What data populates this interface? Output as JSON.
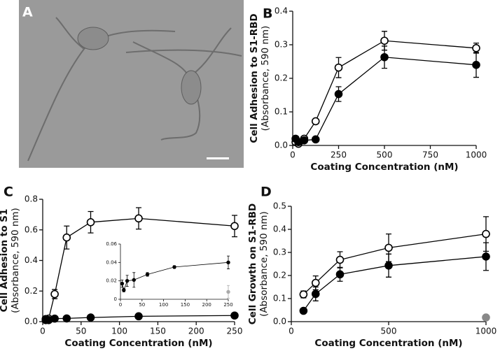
{
  "chart_data": [
    {
      "type": "image",
      "panel": "A"
    },
    {
      "type": "line",
      "panel": "B",
      "xlabel": "Coating Concentration (nM)",
      "ylabel": [
        "Cell Adhesion to S1-RBD",
        "(Absorbance, 590 nm)"
      ],
      "xlim": [
        0,
        1000
      ],
      "xticks": [
        0,
        250,
        500,
        750,
        1000
      ],
      "ylim": [
        0,
        0.4
      ],
      "yticks": [
        {
          "value": 0,
          "label": "0.0"
        },
        0.1,
        0.2,
        0.3,
        0.4
      ],
      "series": [
        {
          "marker": "open",
          "color": "#000000",
          "x": [
            15.6,
            31.25,
            62.5,
            125,
            250,
            500,
            1000
          ],
          "values": [
            0.01,
            0.005,
            0.02,
            0.072,
            0.232,
            0.312,
            0.29
          ],
          "errors": [
            null,
            null,
            null,
            null,
            0.03,
            0.028,
            0.015
          ]
        },
        {
          "marker": "filled",
          "color": "#000000",
          "x": [
            15.6,
            31.25,
            62.5,
            125,
            250,
            500,
            1000
          ],
          "values": [
            0.02,
            0.01,
            0.015,
            0.018,
            0.153,
            0.263,
            0.24
          ],
          "errors": [
            null,
            null,
            null,
            null,
            0.022,
            0.033,
            0.037
          ]
        }
      ]
    },
    {
      "type": "line",
      "panel": "C",
      "xlabel": "Coating Concentration (nM)",
      "ylabel": [
        "Cell Adhesion to S1",
        "(Absorbance, 590 nm)"
      ],
      "xlim": [
        0,
        250
      ],
      "xticks": [
        0,
        50,
        100,
        150,
        200,
        250
      ],
      "ylim": [
        0,
        0.8
      ],
      "yticks": [
        {
          "value": 0,
          "label": "0.0"
        },
        0.2,
        0.4,
        0.6,
        0.8
      ],
      "series": [
        {
          "marker": "open",
          "color": "#000000",
          "x": [
            3.9,
            7.8,
            15.6,
            31.25,
            62.5,
            125,
            250
          ],
          "values": [
            0.01,
            0.02,
            0.18,
            0.55,
            0.65,
            0.675,
            0.625
          ],
          "errors": [
            0.005,
            0.01,
            0.03,
            0.075,
            0.07,
            0.07,
            0.07
          ]
        },
        {
          "marker": "filled",
          "color": "#000000",
          "x": [
            3.9,
            7.8,
            15.6,
            31.25,
            62.5,
            125,
            250
          ],
          "values": [
            0.017,
            0.01,
            0.02,
            0.021,
            0.027,
            0.035,
            0.04
          ],
          "errors": [
            null,
            null,
            null,
            null,
            null,
            null,
            null
          ]
        }
      ],
      "inset": {
        "type": "line",
        "xlim": [
          0,
          250
        ],
        "xticks": [
          0,
          50,
          100,
          150,
          200,
          250
        ],
        "ylim": [
          0,
          0.06
        ],
        "yticks": [
          0,
          0.02,
          0.04,
          0.06
        ],
        "series": [
          {
            "marker": "filled",
            "color": "#000000",
            "x": [
              3.9,
              7.8,
              15.6,
              31.25,
              62.5,
              125,
              250
            ],
            "values": [
              0.017,
              0.01,
              0.02,
              0.021,
              0.027,
              0.035,
              0.04
            ],
            "errors": [
              0.004,
              0.002,
              0.006,
              0.008,
              0.002,
              0.0015,
              0.007
            ]
          },
          {
            "marker": "filled",
            "color": "#aaaaaa",
            "line": false,
            "x": [
              250
            ],
            "values": [
              0.008
            ],
            "errors": [
              0.007
            ]
          }
        ]
      }
    },
    {
      "type": "line",
      "panel": "D",
      "xlabel": "Coating Concentration (nM)",
      "ylabel": [
        "Cell Growth on S1-RBD",
        "(Absorbance, 590 nm)"
      ],
      "xlim": [
        0,
        1000
      ],
      "xticks": [
        0,
        500,
        1000
      ],
      "ylim": [
        0,
        0.5
      ],
      "yticks": [
        {
          "value": 0,
          "label": "0.0"
        },
        0.1,
        0.2,
        0.3,
        0.4,
        0.5
      ],
      "series": [
        {
          "marker": "open",
          "color": "#000000",
          "x": [
            62.5,
            125,
            250,
            500,
            1000
          ],
          "values": [
            0.118,
            0.168,
            0.268,
            0.32,
            0.38
          ],
          "errors": [
            0.015,
            0.03,
            0.035,
            0.06,
            0.075
          ]
        },
        {
          "marker": "filled",
          "color": "#000000",
          "x": [
            62.5,
            125,
            250,
            500,
            1000
          ],
          "values": [
            0.047,
            0.12,
            0.205,
            0.243,
            0.282
          ],
          "errors": [
            null,
            0.03,
            0.03,
            0.05,
            0.06
          ]
        },
        {
          "marker": "filled",
          "color": "#888888",
          "line": false,
          "x": [
            1000
          ],
          "values": [
            0.018
          ],
          "errors": [
            null
          ]
        }
      ]
    }
  ]
}
